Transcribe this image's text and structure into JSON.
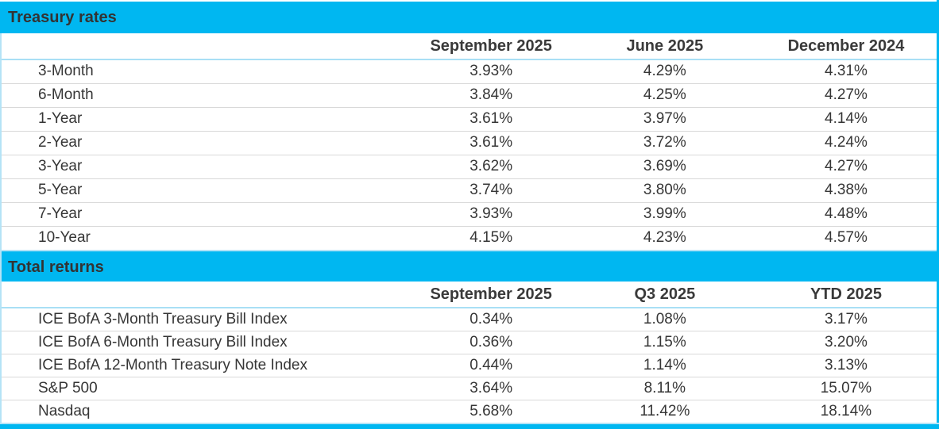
{
  "colors": {
    "accent_cyan": "#00b7f1",
    "light_cyan_line": "#a9dff5",
    "row_separator": "#d9d9d9",
    "text": "#3a3a3a"
  },
  "sections": [
    {
      "title": "Treasury rates",
      "columns": [
        "",
        "September 2025",
        "June 2025",
        "December 2024"
      ],
      "rows": [
        {
          "label": "3-Month",
          "values": [
            "3.93%",
            "4.29%",
            "4.31%"
          ]
        },
        {
          "label": "6-Month",
          "values": [
            "3.84%",
            "4.25%",
            "4.27%"
          ]
        },
        {
          "label": "1-Year",
          "values": [
            "3.61%",
            "3.97%",
            "4.14%"
          ]
        },
        {
          "label": "2-Year",
          "values": [
            "3.61%",
            "3.72%",
            "4.24%"
          ]
        },
        {
          "label": "3-Year",
          "values": [
            "3.62%",
            "3.69%",
            "4.27%"
          ]
        },
        {
          "label": "5-Year",
          "values": [
            "3.74%",
            "3.80%",
            "4.38%"
          ]
        },
        {
          "label": "7-Year",
          "values": [
            "3.93%",
            "3.99%",
            "4.48%"
          ]
        },
        {
          "label": "10-Year",
          "values": [
            "4.15%",
            "4.23%",
            "4.57%"
          ]
        }
      ]
    },
    {
      "title": "Total returns",
      "columns": [
        "",
        "September 2025",
        "Q3 2025",
        "YTD 2025"
      ],
      "rows": [
        {
          "label": "ICE BofA 3-Month Treasury Bill Index",
          "values": [
            "0.34%",
            "1.08%",
            "3.17%"
          ]
        },
        {
          "label": "ICE BofA 6-Month Treasury Bill Index",
          "values": [
            "0.36%",
            "1.15%",
            "3.20%"
          ]
        },
        {
          "label": "ICE BofA 12-Month Treasury Note Index",
          "values": [
            "0.44%",
            "1.14%",
            "3.13%"
          ]
        },
        {
          "label": "S&P 500",
          "values": [
            "3.64%",
            "8.11%",
            "15.07%"
          ]
        },
        {
          "label": "Nasdaq",
          "values": [
            "5.68%",
            "11.42%",
            "18.14%"
          ]
        }
      ]
    }
  ]
}
